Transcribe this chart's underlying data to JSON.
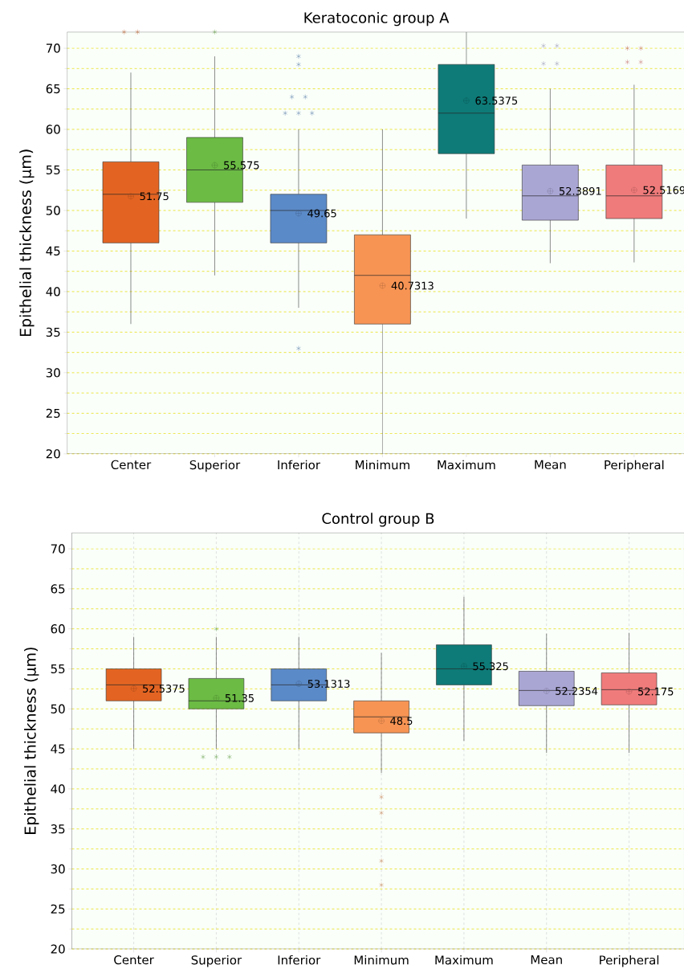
{
  "chart_data": [
    {
      "type": "box",
      "title": "Keratoconic group A",
      "ylabel": "Epithelial thickness (µm)",
      "categories": [
        "Center",
        "Superior",
        "Inferior",
        "Minimum",
        "Maximum",
        "Mean",
        "Peripheral"
      ],
      "colors": [
        "#e36422",
        "#6bbb44",
        "#5b8ac8",
        "#f79454",
        "#0e7b78",
        "#aaa6d4",
        "#f07b7b"
      ],
      "boxes": [
        {
          "low": 36,
          "q1": 46,
          "median": 52,
          "q3": 56,
          "high": 67,
          "mean": 51.75,
          "outliers": [
            72,
            72
          ]
        },
        {
          "low": 42,
          "q1": 51,
          "median": 55,
          "q3": 59,
          "high": 69,
          "mean": 55.575,
          "outliers": [
            72
          ]
        },
        {
          "low": 38,
          "q1": 46,
          "median": 50,
          "q3": 52,
          "high": 60,
          "mean": 49.65,
          "outliers": [
            69,
            68,
            64,
            64,
            62,
            62,
            62,
            33
          ]
        },
        {
          "low": 20,
          "q1": 36,
          "median": 42,
          "q3": 47,
          "high": 60,
          "mean": 40.7313
        },
        {
          "low": 49,
          "q1": 57,
          "median": 62,
          "q3": 68,
          "high": 72,
          "mean": 63.5375
        },
        {
          "low": 43.5,
          "q1": 48.8,
          "median": 51.8,
          "q3": 55.6,
          "high": 65,
          "mean": 52.3891,
          "outliers": [
            70.3,
            70.3,
            68.1,
            68.1
          ]
        },
        {
          "low": 43.6,
          "q1": 49,
          "median": 51.8,
          "q3": 55.6,
          "high": 65.5,
          "mean": 52.5169,
          "outliers": [
            70,
            70,
            68.3,
            68.3
          ]
        }
      ],
      "value_labels": [
        "51.75",
        "55.575",
        "49.65",
        "40.7313",
        "63.5375",
        "52.3891",
        "52.5169"
      ],
      "ylim": [
        20,
        72
      ],
      "yticks": [
        20,
        {
          "value": 22.5,
          "label": null
        },
        25,
        {
          "value": 27.5,
          "label": null
        },
        30,
        {
          "value": 32.5,
          "label": null
        },
        35,
        {
          "value": 37.5,
          "label": null
        },
        40,
        {
          "value": 42.5,
          "label": null
        },
        45,
        {
          "value": 47.5,
          "label": null
        },
        50,
        {
          "value": 52.5,
          "label": null
        },
        55,
        {
          "value": 57.5,
          "label": null
        },
        60,
        {
          "value": 62.5,
          "label": null
        },
        65,
        {
          "value": 67.5,
          "label": null
        },
        70
      ],
      "grid": "y"
    },
    {
      "type": "box",
      "title": "Control group B",
      "ylabel": "Epithelial thickness (µm)",
      "categories": [
        "Center",
        "Superior",
        "Inferior",
        "Minimum",
        "Maximum",
        "Mean",
        "Peripheral"
      ],
      "colors": [
        "#e36422",
        "#6bbb44",
        "#5b8ac8",
        "#f79454",
        "#0e7b78",
        "#aaa6d4",
        "#f07b7b"
      ],
      "boxes": [
        {
          "low": 45,
          "q1": 51,
          "median": 53,
          "q3": 55,
          "high": 59,
          "mean": 52.5375
        },
        {
          "low": 45,
          "q1": 50,
          "median": 51,
          "q3": 53.8,
          "high": 59,
          "mean": 51.35,
          "outliers": [
            60,
            44,
            44,
            44
          ]
        },
        {
          "low": 45,
          "q1": 51,
          "median": 53,
          "q3": 55,
          "high": 59,
          "mean": 53.1313
        },
        {
          "low": 42,
          "q1": 47,
          "median": 49,
          "q3": 51,
          "high": 57,
          "mean": 48.5,
          "outliers": [
            39,
            37,
            31,
            28
          ]
        },
        {
          "low": 46,
          "q1": 53,
          "median": 55,
          "q3": 58,
          "high": 64,
          "mean": 55.325
        },
        {
          "low": 44.5,
          "q1": 50.4,
          "median": 52.3,
          "q3": 54.7,
          "high": 59.4,
          "mean": 52.2354
        },
        {
          "low": 44.5,
          "q1": 50.5,
          "median": 52.4,
          "q3": 54.5,
          "high": 59.5,
          "mean": 52.175
        }
      ],
      "value_labels": [
        "52.5375",
        "51.35",
        "53.1313",
        "48.5",
        "55.325",
        "52.2354",
        "52.175"
      ],
      "ylim": [
        20,
        72
      ],
      "yticks": [
        20,
        {
          "value": 22.5,
          "label": null
        },
        25,
        {
          "value": 27.5,
          "label": null
        },
        30,
        {
          "value": 32.5,
          "label": null
        },
        35,
        {
          "value": 37.5,
          "label": null
        },
        40,
        {
          "value": 42.5,
          "label": null
        },
        45,
        {
          "value": 47.5,
          "label": null
        },
        50,
        {
          "value": 52.5,
          "label": null
        },
        55,
        {
          "value": 57.5,
          "label": null
        },
        60,
        {
          "value": 62.5,
          "label": null
        },
        65,
        {
          "value": 67.5,
          "label": null
        },
        70
      ],
      "grid": true
    }
  ]
}
